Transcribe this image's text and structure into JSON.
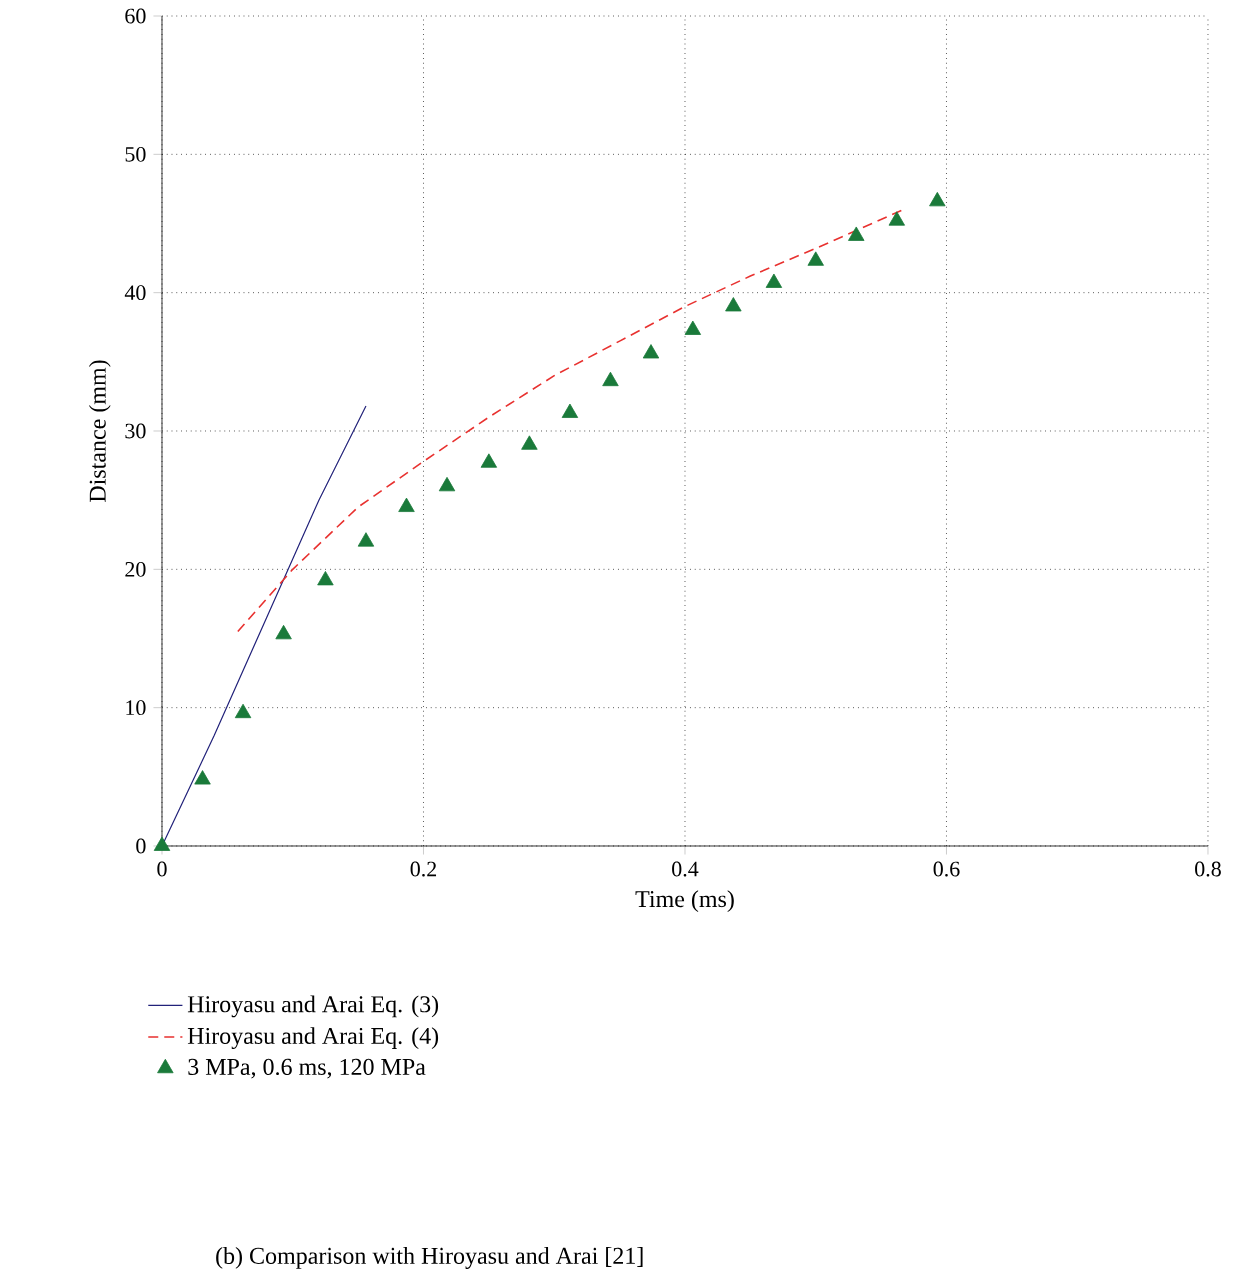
{
  "chart_data": {
    "type": "line",
    "xlabel": "Time (ms)",
    "ylabel": "Distance (mm)",
    "xlim": [
      0,
      0.8
    ],
    "xticks": [
      0,
      0.2,
      0.4,
      0.6,
      0.8
    ],
    "ylim": [
      0,
      60
    ],
    "yticks": [
      0,
      10,
      20,
      30,
      40,
      50,
      60
    ],
    "grid": true,
    "legend": "bottom",
    "annotations": [
      "(b) Comparison with Hiroyasu and Arai [21]"
    ],
    "series": [
      {
        "name": "Hiroyasu and Arai Eq. (3)",
        "color": "#22227a",
        "line_style": "solid",
        "x": [
          0,
          0.04,
          0.08,
          0.12,
          0.156
        ],
        "values": [
          0,
          8,
          16.5,
          25,
          31.8
        ]
      },
      {
        "name": "Hiroyasu and Arai Eq. (4)",
        "color": "#e8312f",
        "line_style": "dashed",
        "x": [
          0.058,
          0.1,
          0.15,
          0.2,
          0.25,
          0.3,
          0.35,
          0.4,
          0.45,
          0.5,
          0.567
        ],
        "values": [
          15.5,
          20,
          24.5,
          27.8,
          31,
          34,
          36.5,
          39,
          41.2,
          43.2,
          46
        ]
      },
      {
        "name": "3 MPa, 0.6 ms, 120 MPa",
        "type": "scatter",
        "color": "#1a7a3a",
        "marker": "triangle",
        "x": [
          0,
          0.031,
          0.062,
          0.093,
          0.125,
          0.156,
          0.187,
          0.218,
          0.25,
          0.281,
          0.312,
          0.343,
          0.374,
          0.406,
          0.437,
          0.468,
          0.5,
          0.531,
          0.562,
          0.593
        ],
        "values": [
          0,
          4.8,
          9.6,
          15.3,
          19.2,
          22,
          24.5,
          26,
          27.7,
          29,
          31.3,
          33.6,
          35.6,
          37.3,
          39,
          40.7,
          42.3,
          44.1,
          45.2,
          46.6
        ]
      }
    ]
  }
}
